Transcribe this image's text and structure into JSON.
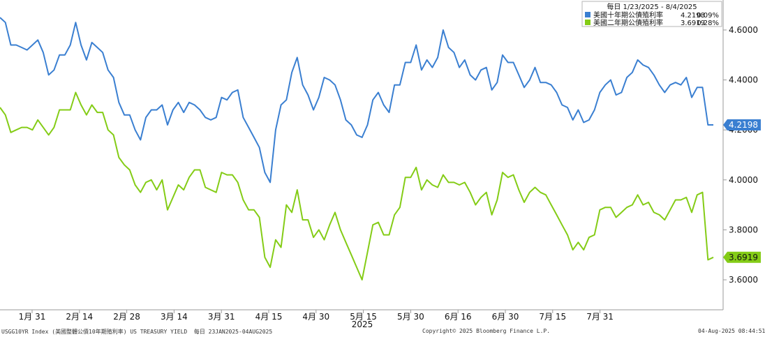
{
  "chart_data": {
    "type": "line",
    "legend": {
      "header": "每日 1/23/2025 - 8/4/2025",
      "placement": "top-right"
    },
    "x_ticks": [
      "1月 31",
      "2月 14",
      "2月 28",
      "3月 14",
      "3月 31",
      "4月 15",
      "4月 30",
      "5月 15",
      "5月 30",
      "6月 16",
      "6月 30",
      "7月 15",
      "7月 31"
    ],
    "x_year_label": "2025",
    "y_ticks": [
      "3.6000",
      "3.8000",
      "4.0000",
      "4.2000",
      "4.4000",
      "4.6000"
    ],
    "ylim": [
      3.48,
      4.72
    ],
    "grid": false,
    "series": [
      {
        "name": "美國十年期公債殖利率",
        "last_value": "4.2198",
        "change": "0.09%",
        "color": "#3a7fd1",
        "values": [
          4.65,
          4.63,
          4.54,
          4.54,
          4.53,
          4.52,
          4.54,
          4.56,
          4.51,
          4.42,
          4.44,
          4.5,
          4.5,
          4.54,
          4.63,
          4.54,
          4.48,
          4.55,
          4.53,
          4.51,
          4.44,
          4.41,
          4.31,
          4.26,
          4.26,
          4.2,
          4.16,
          4.25,
          4.28,
          4.28,
          4.3,
          4.22,
          4.28,
          4.31,
          4.27,
          4.31,
          4.3,
          4.28,
          4.25,
          4.24,
          4.25,
          4.33,
          4.32,
          4.35,
          4.36,
          4.25,
          4.21,
          4.17,
          4.13,
          4.03,
          3.99,
          4.2,
          4.3,
          4.32,
          4.43,
          4.49,
          4.38,
          4.34,
          4.28,
          4.33,
          4.41,
          4.4,
          4.38,
          4.32,
          4.24,
          4.22,
          4.18,
          4.17,
          4.22,
          4.32,
          4.35,
          4.3,
          4.27,
          4.38,
          4.38,
          4.47,
          4.47,
          4.54,
          4.44,
          4.48,
          4.45,
          4.49,
          4.6,
          4.53,
          4.51,
          4.45,
          4.48,
          4.42,
          4.4,
          4.44,
          4.45,
          4.36,
          4.39,
          4.5,
          4.47,
          4.47,
          4.42,
          4.37,
          4.4,
          4.45,
          4.39,
          4.39,
          4.38,
          4.35,
          4.3,
          4.29,
          4.24,
          4.28,
          4.23,
          4.24,
          4.28,
          4.35,
          4.38,
          4.4,
          4.34,
          4.35,
          4.41,
          4.43,
          4.48,
          4.46,
          4.45,
          4.42,
          4.38,
          4.35,
          4.38,
          4.39,
          4.38,
          4.41,
          4.33,
          4.37,
          4.37,
          4.22,
          4.22
        ]
      },
      {
        "name": "美國二年期公債殖利率",
        "last_value": "3.6919",
        "change": "0.28%",
        "color": "#84cc16",
        "values": [
          4.29,
          4.26,
          4.19,
          4.2,
          4.21,
          4.21,
          4.2,
          4.24,
          4.21,
          4.18,
          4.21,
          4.28,
          4.28,
          4.28,
          4.35,
          4.3,
          4.26,
          4.3,
          4.27,
          4.27,
          4.2,
          4.18,
          4.09,
          4.06,
          4.04,
          3.98,
          3.95,
          3.99,
          4.0,
          3.96,
          4.0,
          3.88,
          3.93,
          3.98,
          3.96,
          4.01,
          4.04,
          4.04,
          3.97,
          3.96,
          3.95,
          4.03,
          4.02,
          4.02,
          3.99,
          3.92,
          3.88,
          3.88,
          3.85,
          3.69,
          3.65,
          3.76,
          3.73,
          3.9,
          3.87,
          3.96,
          3.84,
          3.84,
          3.77,
          3.8,
          3.76,
          3.82,
          3.87,
          3.8,
          3.75,
          3.7,
          3.65,
          3.6,
          3.71,
          3.82,
          3.83,
          3.78,
          3.78,
          3.86,
          3.89,
          4.01,
          4.01,
          4.05,
          3.96,
          4.0,
          3.98,
          3.97,
          4.02,
          3.99,
          3.99,
          3.98,
          3.99,
          3.95,
          3.9,
          3.93,
          3.95,
          3.86,
          3.92,
          4.03,
          4.01,
          4.02,
          3.96,
          3.91,
          3.95,
          3.97,
          3.95,
          3.94,
          3.9,
          3.86,
          3.82,
          3.78,
          3.72,
          3.75,
          3.72,
          3.77,
          3.78,
          3.88,
          3.89,
          3.89,
          3.85,
          3.87,
          3.89,
          3.9,
          3.94,
          3.9,
          3.91,
          3.87,
          3.86,
          3.84,
          3.88,
          3.92,
          3.92,
          3.93,
          3.87,
          3.94,
          3.95,
          3.68,
          3.69
        ]
      }
    ]
  },
  "footer": {
    "left": "USGG10YR Index (美國整體公債10年期殖利率) US TREASURY YIELD  每日 23JAN2025-04AUG2025",
    "center": "Copyright© 2025 Bloomberg Finance L.P.",
    "right": "04-Aug-2025 08:44:51"
  }
}
